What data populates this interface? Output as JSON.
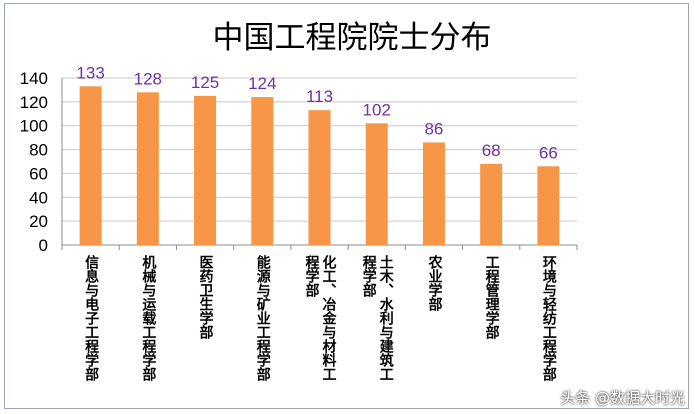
{
  "chart_data": {
    "type": "bar",
    "title": "中国工程院院士分布",
    "categories": [
      "信息与电子工程学部",
      "机械与运载工程学部",
      "医药卫生学部",
      "能源与矿业工程学部",
      "化工、冶金与材料工\n程学部",
      "土木、水利与建筑工\n程学部",
      "农业学部",
      "工程管理学部",
      "环境与轻纺工程学部"
    ],
    "values": [
      133,
      128,
      125,
      124,
      113,
      102,
      86,
      68,
      66
    ],
    "ylim": [
      0,
      140
    ],
    "yticks": [
      0,
      20,
      40,
      60,
      80,
      100,
      120,
      140
    ],
    "grid": true,
    "legend": "none",
    "colors": {
      "bar": "#f79646",
      "label": "#7030a0",
      "grid": "#c9c9c9"
    }
  },
  "watermark": "头条 @数据大时光"
}
